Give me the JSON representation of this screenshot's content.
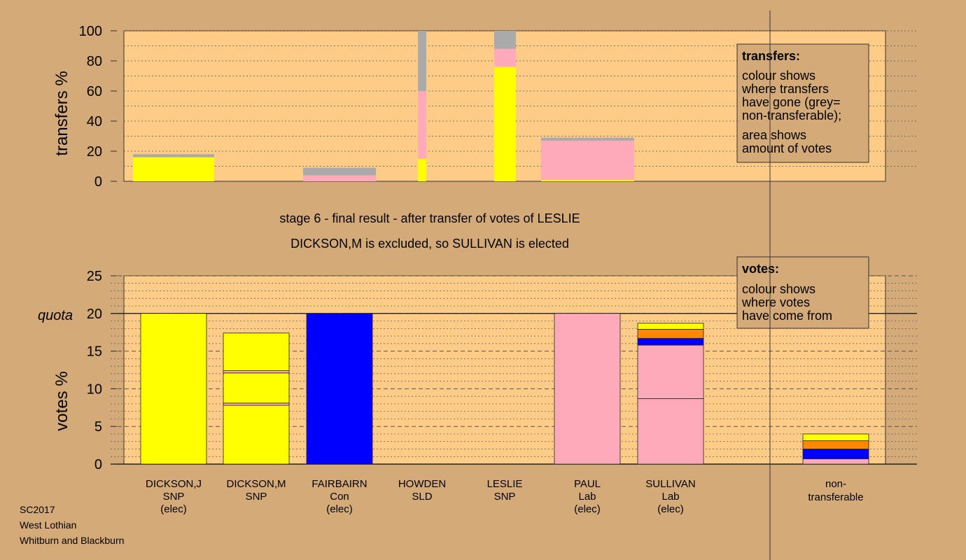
{
  "colors": {
    "background": "#d4aa78",
    "plot_bg": "#ffcc88",
    "SNP": "#ffff00",
    "Con": "#0000ff",
    "Lab": "#ffaabb",
    "SLD": "#ff8800",
    "nontransferable": "#aaaaaa"
  },
  "footer": {
    "line1": "SC2017",
    "line2": "West Lothian",
    "line3": "Whitburn and Blackburn"
  },
  "chart_data": [
    {
      "id": "transfers",
      "type": "bar",
      "ylabel": "transfers %",
      "ylim": [
        0,
        100
      ],
      "yticks": [
        "0",
        "20",
        "40",
        "60",
        "80",
        "100"
      ],
      "legend": {
        "title": "transfers:",
        "lines": [
          "colour shows",
          "where transfers",
          "have gone (grey=",
          "non-transferable);"
        ],
        "lines2": [
          "area shows",
          "amount of votes"
        ]
      },
      "bars": [
        {
          "candidate": "DICKSON,J",
          "segments": [
            {
              "party": "SNP",
              "value": 16
            },
            {
              "party": "nontransferable",
              "value": 2
            }
          ]
        },
        {
          "candidate": "FAIRBAIRN",
          "segments": [
            {
              "party": "Lab",
              "value": 4
            },
            {
              "party": "nontransferable",
              "value": 5
            }
          ]
        },
        {
          "candidate": "HOWDEN",
          "segments": [
            {
              "party": "SNP",
              "value": 15
            },
            {
              "party": "Lab",
              "value": 45
            },
            {
              "party": "nontransferable",
              "value": 40
            }
          ]
        },
        {
          "candidate": "LESLIE",
          "segments": [
            {
              "party": "SNP",
              "value": 76
            },
            {
              "party": "Lab",
              "value": 12
            },
            {
              "party": "nontransferable",
              "value": 12
            }
          ]
        },
        {
          "candidate": "DICKSON,M",
          "segments": [
            {
              "party": "SNP",
              "value": 1
            },
            {
              "party": "Lab",
              "value": 26
            },
            {
              "party": "nontransferable",
              "value": 2
            }
          ]
        }
      ]
    },
    {
      "id": "votes",
      "type": "bar",
      "ylabel": "votes %",
      "ylim": [
        0,
        25
      ],
      "yticks": [
        "0",
        "5",
        "10",
        "15",
        "20",
        "25"
      ],
      "quota": 20,
      "quota_label": "quota",
      "legend": {
        "title": "votes:",
        "lines": [
          "colour shows",
          "where votes",
          "have come from"
        ]
      },
      "title_lines": [
        "stage 6 - final result - after transfer of votes of LESLIE",
        "DICKSON,M is excluded, so SULLIVAN is elected"
      ],
      "candidates": [
        {
          "name": "DICKSON,J",
          "party": "SNP",
          "status": "(elec)",
          "segments": [
            {
              "party": "SNP",
              "value": 20
            }
          ]
        },
        {
          "name": "DICKSON,M",
          "party": "SNP",
          "status": "",
          "segments": [
            {
              "party": "SNP",
              "value": 7.8
            },
            {
              "party": "Lab",
              "value": 0.3
            },
            {
              "party": "SNP",
              "value": 4.0
            },
            {
              "party": "Lab",
              "value": 0.3
            },
            {
              "party": "SNP",
              "value": 5.0
            }
          ]
        },
        {
          "name": "FAIRBAIRN",
          "party": "Con",
          "status": "(elec)",
          "segments": [
            {
              "party": "Con",
              "value": 20
            }
          ]
        },
        {
          "name": "HOWDEN",
          "party": "SLD",
          "status": "",
          "segments": [
            {
              "party": "SLD",
              "value": 0
            }
          ]
        },
        {
          "name": "LESLIE",
          "party": "SNP",
          "status": "",
          "segments": [
            {
              "party": "SNP",
              "value": 0
            }
          ]
        },
        {
          "name": "PAUL",
          "party": "Lab",
          "status": "(elec)",
          "segments": [
            {
              "party": "Lab",
              "value": 20
            }
          ]
        },
        {
          "name": "SULLIVAN",
          "party": "Lab",
          "status": "(elec)",
          "segments": [
            {
              "party": "Lab",
              "value": 8.7
            },
            {
              "party": "Lab",
              "value": 7.1
            },
            {
              "party": "Con",
              "value": 0.9
            },
            {
              "party": "SLD",
              "value": 1.2
            },
            {
              "party": "SNP",
              "value": 0.8
            }
          ]
        }
      ],
      "nontransferable": {
        "label_line1": "non-",
        "label_line2": "transferable",
        "segments": [
          {
            "party": "Lab",
            "value": 0.7
          },
          {
            "party": "Con",
            "value": 1.3
          },
          {
            "party": "SLD",
            "value": 1.1
          },
          {
            "party": "SNP",
            "value": 0.9
          }
        ]
      }
    }
  ]
}
